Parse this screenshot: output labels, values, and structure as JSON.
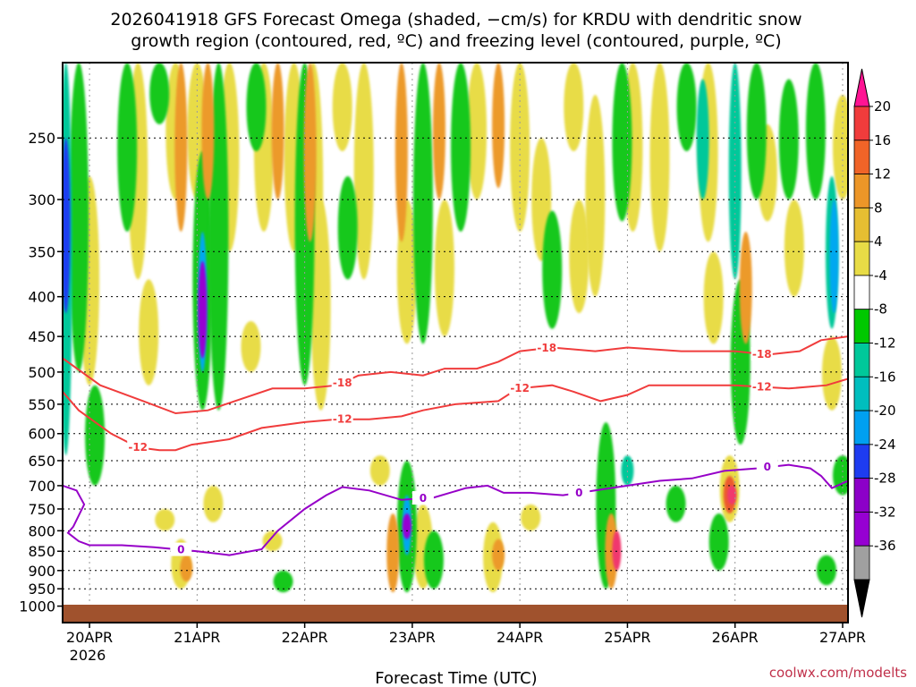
{
  "chart_data": {
    "type": "heatmap",
    "title_line1": "2026041918 GFS Forecast Omega (shaded, −cm/s) for KRDU with dendritic snow",
    "title_line2": "growth region (contoured, red, ºC) and freezing level (contoured, purple, ºC)",
    "xlabel": "Forecast Time (UTC)",
    "ylabel": "",
    "credit": "coolwx.com/modelts",
    "x_range": [
      -0.25,
      7.05
    ],
    "y_axis": {
      "scale": "log-pressure",
      "range": [
        200,
        1050
      ],
      "ticks": [
        {
          "value": 250,
          "label": "250"
        },
        {
          "value": 300,
          "label": "300"
        },
        {
          "value": 350,
          "label": "350"
        },
        {
          "value": 400,
          "label": "400"
        },
        {
          "value": 450,
          "label": "450"
        },
        {
          "value": 500,
          "label": "500"
        },
        {
          "value": 550,
          "label": "550"
        },
        {
          "value": 600,
          "label": "600"
        },
        {
          "value": 650,
          "label": "650"
        },
        {
          "value": 700,
          "label": "700"
        },
        {
          "value": 750,
          "label": "750"
        },
        {
          "value": 800,
          "label": "800"
        },
        {
          "value": 850,
          "label": "850"
        },
        {
          "value": 900,
          "label": "900"
        },
        {
          "value": 950,
          "label": "950"
        },
        {
          "value": 1000,
          "label": "1000"
        }
      ]
    },
    "x_ticks": [
      {
        "value": 0,
        "label": "20APR"
      },
      {
        "value": 1,
        "label": "21APR"
      },
      {
        "value": 2,
        "label": "22APR"
      },
      {
        "value": 3,
        "label": "23APR"
      },
      {
        "value": 4,
        "label": "24APR"
      },
      {
        "value": 5,
        "label": "25APR"
      },
      {
        "value": 6,
        "label": "26APR"
      },
      {
        "value": 7,
        "label": "27APR"
      }
    ],
    "x_year_label": "2026",
    "colorbar": {
      "labels": [
        "20",
        "16",
        "12",
        "8",
        "4",
        "-4",
        "-8",
        "-12",
        "-16",
        "-20",
        "-24",
        "-28",
        "-32",
        "-36"
      ],
      "colors": [
        "#ff1493",
        "#f03c3c",
        "#f06428",
        "#ec9628",
        "#e6be32",
        "#e8dc46",
        "#ffffff",
        "#00c800",
        "#00c89a",
        "#00bebe",
        "#00a0f0",
        "#1e3cf0",
        "#8c00c8",
        "#9600d2",
        "#a0a0a0",
        "#000000"
      ]
    },
    "omega_features": [
      {
        "t": -0.22,
        "p_top": 200,
        "p_bot": 640,
        "value": -12
      },
      {
        "t": -0.22,
        "p_top": 250,
        "p_bot": 420,
        "value": -20
      },
      {
        "t": -0.1,
        "p_top": 200,
        "p_bot": 500,
        "value": -8
      },
      {
        "t": 0.0,
        "p_top": 280,
        "p_bot": 520,
        "value": 5
      },
      {
        "t": 0.05,
        "p_top": 520,
        "p_bot": 700,
        "value": -8
      },
      {
        "t": 0.35,
        "p_top": 200,
        "p_bot": 330,
        "value": -8
      },
      {
        "t": 0.45,
        "p_top": 200,
        "p_bot": 380,
        "value": 5
      },
      {
        "t": 0.55,
        "p_top": 380,
        "p_bot": 520,
        "value": 5
      },
      {
        "t": 0.65,
        "p_top": 200,
        "p_bot": 240,
        "value": -8
      },
      {
        "t": 0.7,
        "p_top": 750,
        "p_bot": 800,
        "value": 5
      },
      {
        "t": 0.8,
        "p_top": 200,
        "p_bot": 300,
        "value": 5
      },
      {
        "t": 0.85,
        "p_top": 200,
        "p_bot": 330,
        "value": 10
      },
      {
        "t": 0.85,
        "p_top": 820,
        "p_bot": 950,
        "value": 5
      },
      {
        "t": 0.9,
        "p_top": 860,
        "p_bot": 930,
        "value": 10
      },
      {
        "t": 1.0,
        "p_top": 200,
        "p_bot": 300,
        "value": 5
      },
      {
        "t": 1.05,
        "p_top": 260,
        "p_bot": 560,
        "value": -8
      },
      {
        "t": 1.05,
        "p_top": 330,
        "p_bot": 500,
        "value": -16
      },
      {
        "t": 1.05,
        "p_top": 360,
        "p_bot": 480,
        "value": -28
      },
      {
        "t": 1.1,
        "p_top": 200,
        "p_bot": 300,
        "value": 10
      },
      {
        "t": 1.2,
        "p_top": 200,
        "p_bot": 560,
        "value": -8
      },
      {
        "t": 1.15,
        "p_top": 700,
        "p_bot": 780,
        "value": 5
      },
      {
        "t": 1.3,
        "p_top": 200,
        "p_bot": 350,
        "value": 5
      },
      {
        "t": 1.5,
        "p_top": 430,
        "p_bot": 500,
        "value": 5
      },
      {
        "t": 1.55,
        "p_top": 200,
        "p_bot": 260,
        "value": -8
      },
      {
        "t": 1.62,
        "p_top": 200,
        "p_bot": 330,
        "value": 5
      },
      {
        "t": 1.7,
        "p_top": 800,
        "p_bot": 850,
        "value": 5
      },
      {
        "t": 1.75,
        "p_top": 200,
        "p_bot": 300,
        "value": 10
      },
      {
        "t": 1.8,
        "p_top": 900,
        "p_bot": 960,
        "value": -8
      },
      {
        "t": 1.9,
        "p_top": 200,
        "p_bot": 350,
        "value": 5
      },
      {
        "t": 2.05,
        "p_top": 200,
        "p_bot": 340,
        "value": 10
      },
      {
        "t": 2.08,
        "p_top": 200,
        "p_bot": 420,
        "value": 5
      },
      {
        "t": 2.0,
        "p_top": 200,
        "p_bot": 520,
        "value": -8
      },
      {
        "t": 2.15,
        "p_top": 300,
        "p_bot": 560,
        "value": 5
      },
      {
        "t": 2.35,
        "p_top": 200,
        "p_bot": 260,
        "value": 5
      },
      {
        "t": 2.4,
        "p_top": 280,
        "p_bot": 380,
        "value": -8
      },
      {
        "t": 2.55,
        "p_top": 200,
        "p_bot": 380,
        "value": 5
      },
      {
        "t": 2.7,
        "p_top": 640,
        "p_bot": 700,
        "value": 5
      },
      {
        "t": 2.9,
        "p_top": 200,
        "p_bot": 340,
        "value": 10
      },
      {
        "t": 2.95,
        "p_top": 300,
        "p_bot": 460,
        "value": 5
      },
      {
        "t": 2.82,
        "p_top": 760,
        "p_bot": 960,
        "value": 10
      },
      {
        "t": 2.95,
        "p_top": 650,
        "p_bot": 960,
        "value": -8
      },
      {
        "t": 2.95,
        "p_top": 720,
        "p_bot": 860,
        "value": -16
      },
      {
        "t": 2.95,
        "p_top": 760,
        "p_bot": 820,
        "value": -28
      },
      {
        "t": 3.1,
        "p_top": 200,
        "p_bot": 460,
        "value": -8
      },
      {
        "t": 3.25,
        "p_top": 200,
        "p_bot": 300,
        "value": 10
      },
      {
        "t": 3.3,
        "p_top": 300,
        "p_bot": 450,
        "value": 5
      },
      {
        "t": 3.1,
        "p_top": 740,
        "p_bot": 950,
        "value": 5
      },
      {
        "t": 3.2,
        "p_top": 800,
        "p_bot": 950,
        "value": -8
      },
      {
        "t": 3.45,
        "p_top": 200,
        "p_bot": 330,
        "value": -8
      },
      {
        "t": 3.6,
        "p_top": 200,
        "p_bot": 300,
        "value": 5
      },
      {
        "t": 3.8,
        "p_top": 200,
        "p_bot": 290,
        "value": 10
      },
      {
        "t": 3.75,
        "p_top": 780,
        "p_bot": 960,
        "value": 5
      },
      {
        "t": 3.8,
        "p_top": 820,
        "p_bot": 900,
        "value": 10
      },
      {
        "t": 4.0,
        "p_top": 200,
        "p_bot": 330,
        "value": 5
      },
      {
        "t": 4.1,
        "p_top": 740,
        "p_bot": 800,
        "value": 5
      },
      {
        "t": 4.2,
        "p_top": 250,
        "p_bot": 360,
        "value": 5
      },
      {
        "t": 4.3,
        "p_top": 310,
        "p_bot": 440,
        "value": -8
      },
      {
        "t": 4.5,
        "p_top": 200,
        "p_bot": 260,
        "value": 5
      },
      {
        "t": 4.55,
        "p_top": 300,
        "p_bot": 420,
        "value": 5
      },
      {
        "t": 4.7,
        "p_top": 220,
        "p_bot": 400,
        "value": 5
      },
      {
        "t": 4.8,
        "p_top": 580,
        "p_bot": 950,
        "value": -8
      },
      {
        "t": 4.85,
        "p_top": 760,
        "p_bot": 950,
        "value": 10
      },
      {
        "t": 4.9,
        "p_top": 800,
        "p_bot": 900,
        "value": 18
      },
      {
        "t": 4.95,
        "p_top": 200,
        "p_bot": 320,
        "value": -8
      },
      {
        "t": 5.0,
        "p_top": 640,
        "p_bot": 700,
        "value": -12
      },
      {
        "t": 5.05,
        "p_top": 200,
        "p_bot": 330,
        "value": 5
      },
      {
        "t": 5.3,
        "p_top": 200,
        "p_bot": 350,
        "value": 5
      },
      {
        "t": 5.45,
        "p_top": 700,
        "p_bot": 780,
        "value": -8
      },
      {
        "t": 5.55,
        "p_top": 200,
        "p_bot": 260,
        "value": -8
      },
      {
        "t": 5.7,
        "p_top": 210,
        "p_bot": 300,
        "value": -12
      },
      {
        "t": 5.75,
        "p_top": 200,
        "p_bot": 340,
        "value": 5
      },
      {
        "t": 5.8,
        "p_top": 350,
        "p_bot": 460,
        "value": 5
      },
      {
        "t": 5.85,
        "p_top": 760,
        "p_bot": 900,
        "value": -8
      },
      {
        "t": 5.95,
        "p_top": 640,
        "p_bot": 780,
        "value": 5
      },
      {
        "t": 5.95,
        "p_top": 680,
        "p_bot": 760,
        "value": 14
      },
      {
        "t": 5.97,
        "p_top": 700,
        "p_bot": 740,
        "value": 18
      },
      {
        "t": 6.0,
        "p_top": 200,
        "p_bot": 380,
        "value": -12
      },
      {
        "t": 6.05,
        "p_top": 380,
        "p_bot": 620,
        "value": -8
      },
      {
        "t": 6.1,
        "p_top": 330,
        "p_bot": 460,
        "value": 10
      },
      {
        "t": 6.2,
        "p_top": 200,
        "p_bot": 300,
        "value": -8
      },
      {
        "t": 6.3,
        "p_top": 240,
        "p_bot": 320,
        "value": 5
      },
      {
        "t": 6.5,
        "p_top": 210,
        "p_bot": 300,
        "value": -8
      },
      {
        "t": 6.55,
        "p_top": 300,
        "p_bot": 400,
        "value": 5
      },
      {
        "t": 6.75,
        "p_top": 200,
        "p_bot": 300,
        "value": -8
      },
      {
        "t": 6.9,
        "p_top": 280,
        "p_bot": 440,
        "value": -12
      },
      {
        "t": 6.92,
        "p_top": 300,
        "p_bot": 420,
        "value": -16
      },
      {
        "t": 6.9,
        "p_top": 450,
        "p_bot": 560,
        "value": 5
      },
      {
        "t": 6.85,
        "p_top": 860,
        "p_bot": 940,
        "value": -8
      },
      {
        "t": 7.0,
        "p_top": 220,
        "p_bot": 300,
        "value": 5
      },
      {
        "t": 7.0,
        "p_top": 640,
        "p_bot": 720,
        "value": -8
      }
    ],
    "contours": [
      {
        "name": "minus-18",
        "label": "-18",
        "color": "#f03c3c",
        "label_at": [
          2.35,
          4.25,
          6.25
        ],
        "points": [
          [
            -0.25,
            480
          ],
          [
            0.1,
            520
          ],
          [
            0.5,
            545
          ],
          [
            0.8,
            565
          ],
          [
            1.1,
            560
          ],
          [
            1.35,
            545
          ],
          [
            1.7,
            525
          ],
          [
            2.0,
            525
          ],
          [
            2.3,
            520
          ],
          [
            2.5,
            505
          ],
          [
            2.8,
            500
          ],
          [
            3.1,
            505
          ],
          [
            3.3,
            495
          ],
          [
            3.6,
            495
          ],
          [
            3.8,
            485
          ],
          [
            4.0,
            470
          ],
          [
            4.3,
            465
          ],
          [
            4.7,
            470
          ],
          [
            5.0,
            465
          ],
          [
            5.5,
            470
          ],
          [
            6.0,
            470
          ],
          [
            6.3,
            475
          ],
          [
            6.6,
            470
          ],
          [
            6.8,
            455
          ],
          [
            7.05,
            450
          ]
        ]
      },
      {
        "name": "minus-12",
        "label": "-12",
        "color": "#f03c3c",
        "label_at": [
          0.45,
          2.35,
          4.0,
          6.25
        ],
        "points": [
          [
            -0.25,
            530
          ],
          [
            -0.1,
            560
          ],
          [
            0.2,
            600
          ],
          [
            0.45,
            625
          ],
          [
            0.65,
            630
          ],
          [
            0.8,
            630
          ],
          [
            0.95,
            620
          ],
          [
            1.3,
            610
          ],
          [
            1.6,
            590
          ],
          [
            2.0,
            580
          ],
          [
            2.3,
            575
          ],
          [
            2.6,
            575
          ],
          [
            2.9,
            570
          ],
          [
            3.1,
            560
          ],
          [
            3.4,
            550
          ],
          [
            3.8,
            545
          ],
          [
            3.98,
            525
          ],
          [
            4.3,
            520
          ],
          [
            4.5,
            530
          ],
          [
            4.75,
            545
          ],
          [
            5.0,
            535
          ],
          [
            5.2,
            520
          ],
          [
            5.6,
            520
          ],
          [
            6.0,
            520
          ],
          [
            6.5,
            525
          ],
          [
            6.85,
            520
          ],
          [
            7.05,
            510
          ]
        ]
      },
      {
        "name": "zero",
        "label": "0",
        "color": "#9600c8",
        "label_at": [
          0.85,
          3.1,
          4.55,
          6.3
        ],
        "points": [
          [
            -0.25,
            700
          ],
          [
            -0.12,
            710
          ],
          [
            -0.05,
            740
          ],
          [
            -0.15,
            790
          ],
          [
            -0.2,
            805
          ],
          [
            -0.1,
            825
          ],
          [
            0.0,
            835
          ],
          [
            0.3,
            835
          ],
          [
            0.6,
            840
          ],
          [
            1.0,
            850
          ],
          [
            1.3,
            860
          ],
          [
            1.6,
            845
          ],
          [
            1.75,
            800
          ],
          [
            2.0,
            750
          ],
          [
            2.2,
            720
          ],
          [
            2.35,
            703
          ],
          [
            2.6,
            710
          ],
          [
            2.9,
            730
          ],
          [
            3.2,
            725
          ],
          [
            3.5,
            705
          ],
          [
            3.7,
            700
          ],
          [
            3.85,
            715
          ],
          [
            4.1,
            715
          ],
          [
            4.4,
            720
          ],
          [
            4.7,
            710
          ],
          [
            5.0,
            700
          ],
          [
            5.3,
            690
          ],
          [
            5.6,
            685
          ],
          [
            5.9,
            670
          ],
          [
            6.2,
            665
          ],
          [
            6.5,
            658
          ],
          [
            6.7,
            665
          ],
          [
            6.8,
            680
          ],
          [
            6.9,
            705
          ],
          [
            7.05,
            690
          ]
        ]
      }
    ]
  }
}
